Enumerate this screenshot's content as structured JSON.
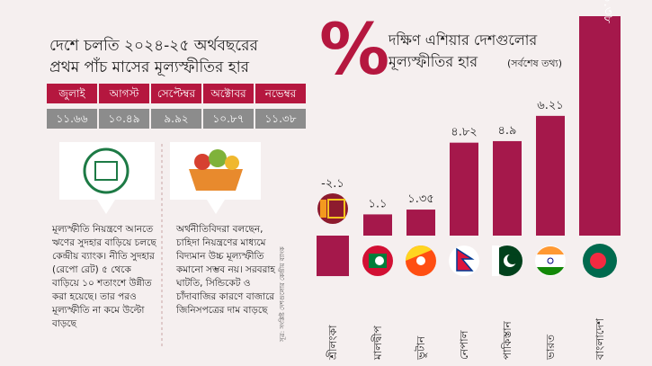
{
  "left_panel": {
    "title_line1": "দেশে চলতি ২০২৪-২৫ অর্থবছরের",
    "title_line2": "প্রথম পাঁচ মাসের মূল্যস্ফীতির হার",
    "table": {
      "months": [
        "জুলাই",
        "আগস্ট",
        "সেপ্টেম্বর",
        "অক্টোবর",
        "নভেম্বর"
      ],
      "values": [
        "১১.৬৬",
        "১০.৪৯",
        "৯.৯২",
        "১০.৮৭",
        "১১.৩৮"
      ]
    },
    "note_left": "মূল্যস্ফীতি নিয়ন্ত্রণে আনতে ঋণের সুদহার বাড়িয়ে চলছে কেন্দ্রীয় ব্যাংক। নীতি সুদহার (রেপো রেট) ৫ থেকে বাড়িয়ে ১০ শতাংশে উন্নীত করা হয়েছে। তার পরও মূল্যস্ফীতি না কমে উল্টো বাড়ছে",
    "note_right": "অর্থনীতিবিদরা বলছেন, চাহিদা নিয়ন্ত্রণের মাধ্যমে বিদ্যমান উচ্চ মূল্যস্ফীতি কমানো সম্ভব নয়। সরবরাহ ঘাটতি, সিন্ডিকেট ও চাঁদাবাজির কারণে বাজারে জিনিসপত্রের দাম বাড়ছে",
    "source": "সূত্র: সংশ্লিষ্ট দেশগুলোর কেন্দ্রীয় ব্যাংক"
  },
  "chart_data": {
    "type": "bar",
    "symbol": "%",
    "title_line1": "দক্ষিণ এশিয়ার দেশগুলোর",
    "title_line2": "মূল্যস্ফীতির হার",
    "title_note": "(সর্বশেষ তথ্য)",
    "categories": [
      "শ্রীলংকা",
      "মালদ্বীপ",
      "ভুটান",
      "নেপাল",
      "পাকিস্তান",
      "ভারত",
      "বাংলাদেশ"
    ],
    "values": [
      -2.1,
      1.1,
      1.35,
      4.82,
      4.9,
      6.21,
      11.38
    ],
    "value_labels": [
      "-২.১",
      "১.১",
      "১.৩৫",
      "৪.৮২",
      "৪.৯",
      "৬.২১",
      "১১.৩৮"
    ],
    "color": "#a5184b"
  }
}
